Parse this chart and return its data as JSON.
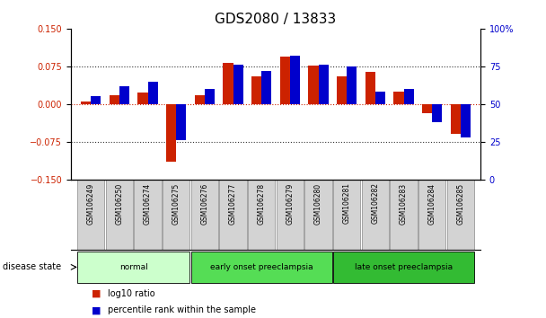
{
  "title": "GDS2080 / 13833",
  "samples": [
    "GSM106249",
    "GSM106250",
    "GSM106274",
    "GSM106275",
    "GSM106276",
    "GSM106277",
    "GSM106278",
    "GSM106279",
    "GSM106280",
    "GSM106281",
    "GSM106282",
    "GSM106283",
    "GSM106284",
    "GSM106285"
  ],
  "log10_ratio": [
    0.005,
    0.018,
    0.022,
    -0.115,
    0.018,
    0.082,
    0.055,
    0.095,
    0.076,
    0.055,
    0.063,
    0.025,
    -0.018,
    -0.06
  ],
  "percentile_rank": [
    55,
    62,
    65,
    26,
    60,
    76,
    72,
    82,
    76,
    75,
    58,
    60,
    38,
    28
  ],
  "groups": [
    {
      "label": "normal",
      "start": 0,
      "end": 4,
      "color": "#ccffcc"
    },
    {
      "label": "early onset preeclampsia",
      "start": 4,
      "end": 9,
      "color": "#55dd55"
    },
    {
      "label": "late onset preeclampsia",
      "start": 9,
      "end": 14,
      "color": "#33bb33"
    }
  ],
  "ylim_left": [
    -0.15,
    0.15
  ],
  "ylim_right": [
    0,
    100
  ],
  "yticks_left": [
    -0.15,
    -0.075,
    0,
    0.075,
    0.15
  ],
  "yticks_right": [
    0,
    25,
    50,
    75,
    100
  ],
  "red_color": "#cc2200",
  "blue_color": "#0000cc",
  "dotted_line_color": "#333333",
  "zero_line_color": "#cc2200",
  "bar_width": 0.35,
  "legend_items": [
    "log10 ratio",
    "percentile rank within the sample"
  ],
  "disease_state_label": "disease state",
  "background_color": "#ffffff",
  "plot_bg_color": "#ffffff",
  "tick_label_size": 7,
  "title_fontsize": 11
}
